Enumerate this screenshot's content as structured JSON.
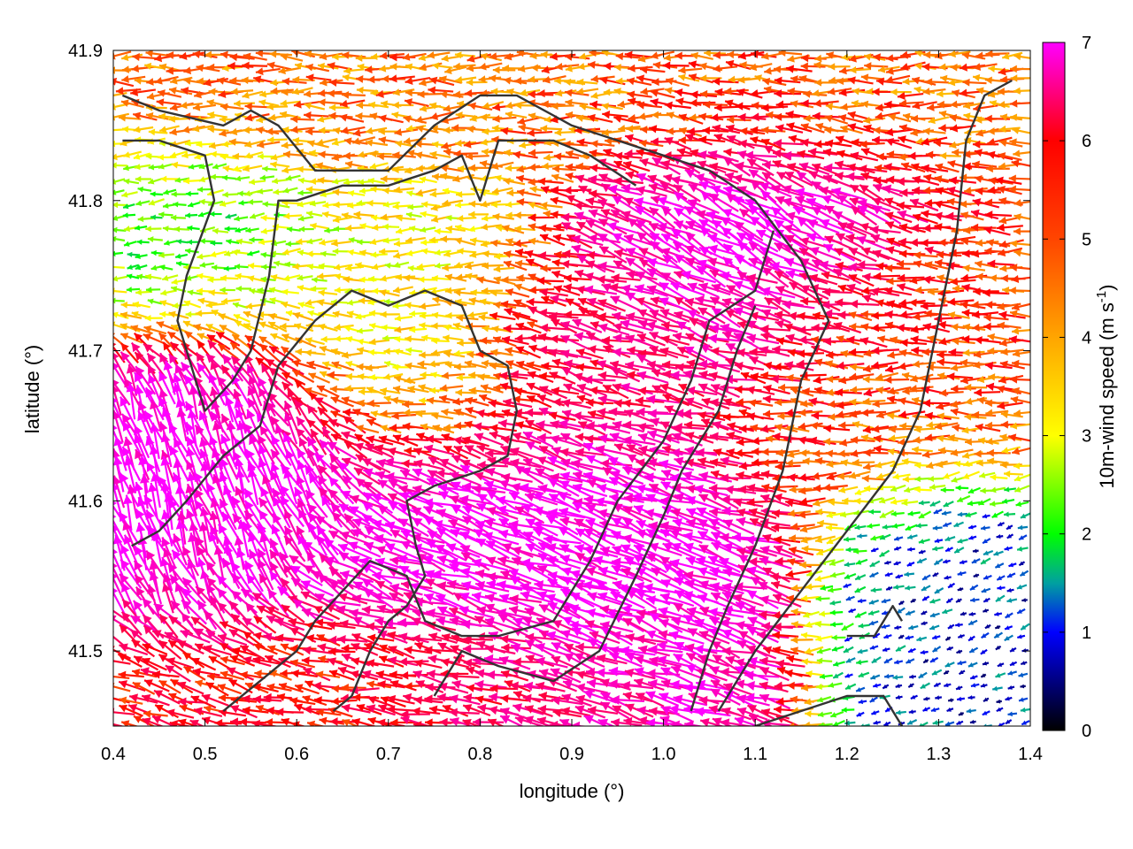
{
  "chart_data": {
    "type": "vector-field",
    "xlabel": "longitude (°)",
    "ylabel": "latitude (°)",
    "xlim": [
      0.4,
      1.4
    ],
    "ylim": [
      41.45,
      41.9
    ],
    "x_ticks": [
      "0.4",
      "0.5",
      "0.6",
      "0.7",
      "0.8",
      "0.9",
      "1.0",
      "1.1",
      "1.2",
      "1.3",
      "1.4"
    ],
    "y_ticks": [
      "41.5",
      "41.6",
      "41.7",
      "41.8",
      "41.9"
    ],
    "colorbar": {
      "label": "10m-wind speed (m s",
      "label_sup": "-1",
      "label_end": ")",
      "range": [
        0,
        7
      ],
      "ticks": [
        "0",
        "1",
        "2",
        "3",
        "4",
        "5",
        "6",
        "7"
      ],
      "palette": [
        "#000000",
        "#0000ff",
        "#00a0a0",
        "#00ff00",
        "#ffff00",
        "#ffa500",
        "#ff0000",
        "#ff00ff"
      ]
    },
    "wind_regions": [
      {
        "name": "north-orange-band",
        "lon": [
          0.4,
          1.4
        ],
        "lat": [
          41.83,
          41.9
        ],
        "speed": 4.3,
        "dir_deg": 180
      },
      {
        "name": "west-green",
        "lon": [
          0.4,
          0.6
        ],
        "lat": [
          41.72,
          41.82
        ],
        "speed": 2.2,
        "dir_deg": 185
      },
      {
        "name": "central-yellow",
        "lon": [
          0.6,
          0.85
        ],
        "lat": [
          41.66,
          41.82
        ],
        "speed": 3.2,
        "dir_deg": 180
      },
      {
        "name": "northeast-magenta",
        "lon": [
          0.95,
          1.2
        ],
        "lat": [
          41.7,
          41.84
        ],
        "speed": 7.0,
        "dir_deg": 150
      },
      {
        "name": "central-red",
        "lon": [
          0.82,
          1.05
        ],
        "lat": [
          41.66,
          41.76
        ],
        "speed": 5.8,
        "dir_deg": 165
      },
      {
        "name": "east-orange",
        "lon": [
          1.1,
          1.4
        ],
        "lat": [
          41.62,
          41.75
        ],
        "speed": 4.6,
        "dir_deg": 180
      },
      {
        "name": "southwest-magenta",
        "lon": [
          0.4,
          0.62
        ],
        "lat": [
          41.5,
          41.7
        ],
        "speed": 7.0,
        "dir_deg": 110
      },
      {
        "name": "south-central-magenta",
        "lon": [
          0.62,
          1.05
        ],
        "lat": [
          41.45,
          41.62
        ],
        "speed": 7.0,
        "dir_deg": 160
      },
      {
        "name": "south-orange",
        "lon": [
          0.4,
          0.9
        ],
        "lat": [
          41.45,
          41.52
        ],
        "speed": 4.5,
        "dir_deg": 175
      },
      {
        "name": "southeast-calm",
        "lon": [
          1.22,
          1.4
        ],
        "lat": [
          41.46,
          41.6
        ],
        "speed": 1.0,
        "dir_deg": 200
      }
    ],
    "coastlines": [
      [
        [
          0.41,
          41.84
        ],
        [
          0.45,
          41.84
        ],
        [
          0.5,
          41.83
        ],
        [
          0.51,
          41.8
        ],
        [
          0.48,
          41.75
        ],
        [
          0.47,
          41.72
        ],
        [
          0.49,
          41.68
        ],
        [
          0.5,
          41.66
        ],
        [
          0.53,
          41.68
        ],
        [
          0.55,
          41.7
        ],
        [
          0.57,
          41.75
        ],
        [
          0.58,
          41.8
        ],
        [
          0.6,
          41.8
        ],
        [
          0.65,
          41.81
        ],
        [
          0.7,
          41.81
        ],
        [
          0.75,
          41.82
        ],
        [
          0.78,
          41.83
        ],
        [
          0.8,
          41.8
        ],
        [
          0.82,
          41.84
        ],
        [
          0.88,
          41.84
        ],
        [
          0.92,
          41.83
        ],
        [
          0.97,
          41.81
        ]
      ],
      [
        [
          0.41,
          41.87
        ],
        [
          0.45,
          41.86
        ],
        [
          0.52,
          41.85
        ],
        [
          0.55,
          41.86
        ],
        [
          0.58,
          41.85
        ],
        [
          0.62,
          41.82
        ],
        [
          0.7,
          41.82
        ],
        [
          0.75,
          41.85
        ],
        [
          0.8,
          41.87
        ],
        [
          0.84,
          41.87
        ],
        [
          0.9,
          41.85
        ],
        [
          0.95,
          41.84
        ],
        [
          1.0,
          41.83
        ],
        [
          1.05,
          41.82
        ],
        [
          1.1,
          41.8
        ],
        [
          1.15,
          41.76
        ],
        [
          1.18,
          41.72
        ],
        [
          1.15,
          41.68
        ],
        [
          1.13,
          41.62
        ],
        [
          1.1,
          41.57
        ],
        [
          1.07,
          41.53
        ],
        [
          1.05,
          41.5
        ],
        [
          1.03,
          41.46
        ]
      ],
      [
        [
          0.42,
          41.57
        ],
        [
          0.45,
          41.58
        ],
        [
          0.48,
          41.6
        ],
        [
          0.52,
          41.63
        ],
        [
          0.56,
          41.65
        ],
        [
          0.58,
          41.69
        ],
        [
          0.62,
          41.72
        ],
        [
          0.66,
          41.74
        ],
        [
          0.7,
          41.73
        ],
        [
          0.74,
          41.74
        ],
        [
          0.78,
          41.73
        ],
        [
          0.8,
          41.7
        ],
        [
          0.83,
          41.69
        ],
        [
          0.84,
          41.66
        ],
        [
          0.83,
          41.63
        ],
        [
          0.8,
          41.62
        ],
        [
          0.75,
          41.61
        ],
        [
          0.72,
          41.6
        ],
        [
          0.73,
          41.57
        ],
        [
          0.74,
          41.55
        ],
        [
          0.72,
          41.53
        ],
        [
          0.7,
          41.52
        ],
        [
          0.68,
          41.5
        ],
        [
          0.66,
          41.47
        ],
        [
          0.64,
          41.46
        ]
      ],
      [
        [
          0.52,
          41.46
        ],
        [
          0.56,
          41.48
        ],
        [
          0.6,
          41.5
        ],
        [
          0.62,
          41.52
        ],
        [
          0.65,
          41.54
        ],
        [
          0.68,
          41.56
        ],
        [
          0.72,
          41.55
        ],
        [
          0.74,
          41.52
        ],
        [
          0.78,
          41.51
        ],
        [
          0.82,
          41.51
        ],
        [
          0.88,
          41.52
        ],
        [
          0.92,
          41.56
        ],
        [
          0.95,
          41.6
        ],
        [
          1.0,
          41.64
        ],
        [
          1.03,
          41.68
        ],
        [
          1.05,
          41.72
        ],
        [
          1.1,
          41.74
        ],
        [
          1.12,
          41.78
        ]
      ],
      [
        [
          0.75,
          41.47
        ],
        [
          0.78,
          41.5
        ],
        [
          0.82,
          41.49
        ],
        [
          0.88,
          41.48
        ],
        [
          0.93,
          41.5
        ],
        [
          0.97,
          41.55
        ],
        [
          1.0,
          41.59
        ],
        [
          1.02,
          41.62
        ],
        [
          1.06,
          41.66
        ],
        [
          1.08,
          41.7
        ],
        [
          1.1,
          41.73
        ]
      ],
      [
        [
          1.06,
          41.46
        ],
        [
          1.1,
          41.5
        ],
        [
          1.15,
          41.54
        ],
        [
          1.2,
          41.58
        ],
        [
          1.25,
          41.62
        ],
        [
          1.28,
          41.66
        ],
        [
          1.3,
          41.72
        ],
        [
          1.32,
          41.78
        ],
        [
          1.33,
          41.84
        ],
        [
          1.35,
          41.87
        ],
        [
          1.38,
          41.88
        ]
      ],
      [
        [
          1.1,
          41.45
        ],
        [
          1.15,
          41.46
        ],
        [
          1.2,
          41.47
        ],
        [
          1.24,
          41.47
        ],
        [
          1.26,
          41.45
        ]
      ],
      [
        [
          1.2,
          41.51
        ],
        [
          1.23,
          41.51
        ],
        [
          1.25,
          41.53
        ],
        [
          1.26,
          41.52
        ]
      ]
    ]
  }
}
